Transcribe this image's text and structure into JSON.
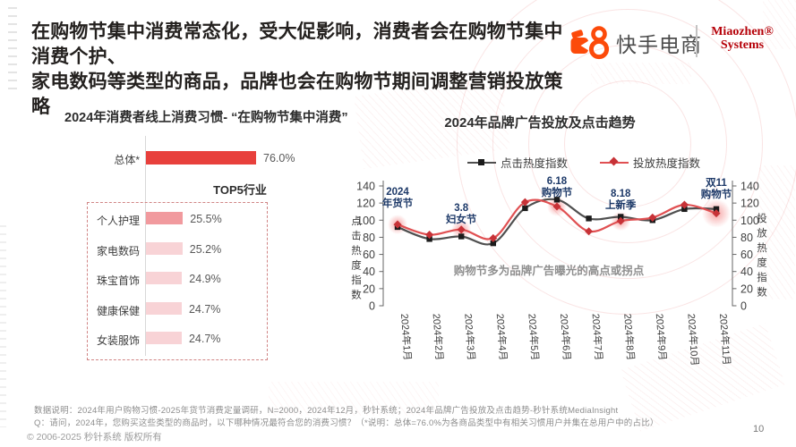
{
  "header": {
    "title_line1": "在购物节集中消费常态化，受大促影响，消费者会在购物节集中消费个护、",
    "title_line2": "家电数码等类型的商品，品牌也会在购物节期间调整营销投放策略",
    "brand": {
      "kuaishou_label": "快手电商",
      "miaozhen_line1": "Miaozhen®",
      "miaozhen_line2": "Systems"
    }
  },
  "left_chart": {
    "title": "2024年消费者线上消费习惯- “在购物节集中消费”",
    "total": {
      "label": "总体*",
      "value_text": "76.0%",
      "pct": 76.0
    },
    "top5_title": "TOP5行业",
    "rows": [
      {
        "label": "个人护理",
        "value_text": "25.5%",
        "pct": 25.5
      },
      {
        "label": "家电数码",
        "value_text": "25.2%",
        "pct": 25.2
      },
      {
        "label": "珠宝首饰",
        "value_text": "24.9%",
        "pct": 24.9
      },
      {
        "label": "健康保健",
        "value_text": "24.7%",
        "pct": 24.7
      },
      {
        "label": "女装服饰",
        "value_text": "24.7%",
        "pct": 24.7
      }
    ]
  },
  "chart_data": {
    "type": "line",
    "title": "2024年品牌广告投放及点击趋势",
    "categories": [
      "2024年1月",
      "2024年2月",
      "2024年3月",
      "2024年4月",
      "2024年5月",
      "2024年6月",
      "2024年7月",
      "2024年8月",
      "2024年9月",
      "2024年10月",
      "2024年11月"
    ],
    "series": [
      {
        "name": "点击热度指数",
        "marker": "square",
        "line_color": "#4f4f4f",
        "marker_color": "#1b1b1b",
        "values": [
          92,
          78,
          81,
          73,
          114,
          124,
          102,
          104,
          100,
          113,
          113
        ]
      },
      {
        "name": "投放热度指数",
        "marker": "diamond",
        "line_color": "#e05052",
        "marker_color": "#c73237",
        "values": [
          95,
          83,
          89,
          79,
          121,
          116,
          87,
          99,
          103,
          118,
          108
        ]
      }
    ],
    "ylim": [
      0,
      140
    ],
    "ytick_step": 20,
    "grid": false,
    "legend_position": "top",
    "left_axis_label": "点击热度指数",
    "right_axis_label": "投放热度指数",
    "annotations": [
      {
        "month_index": 0,
        "lines": [
          "2024",
          "年货节"
        ]
      },
      {
        "month_index": 2,
        "lines": [
          "3.8",
          "妇女节"
        ]
      },
      {
        "month_index": 5,
        "lines": [
          "6.18",
          "购物节"
        ]
      },
      {
        "month_index": 7,
        "lines": [
          "8.18",
          "上新季"
        ]
      },
      {
        "month_index": 10,
        "lines": [
          "双11",
          "购物节"
        ]
      }
    ],
    "highlight_month_indexes": [
      0,
      2,
      5,
      7,
      10
    ],
    "note": "购物节多为品牌广告曝光的高点或拐点"
  },
  "footer": {
    "line1": "数据说明：2024年用户购物习惯-2025年货节消费定量调研，N=2000，2024年12月，秒针系统；2024年品牌广告投放及点击趋势-秒针系统MediaInsight",
    "line2": "Q：请问，2024年，您购买这些类型的商品时，以下哪种情况最符合您的消费习惯？（*说明：总体=76.0%为各商品类型中有相关习惯用户并集在总用户中的占比）",
    "copyright": "© 2006-2025 秒针系统 版权所有",
    "page_number": "10"
  },
  "colors": {
    "accent_red": "#e8403c",
    "bar_salmon": "#f19a9e",
    "bar_pink": "#f8d3d6",
    "annotation_blue": "#1d3968",
    "kuaishou_orange": "#fc4a0a",
    "miaozhen_red": "#b50008"
  }
}
